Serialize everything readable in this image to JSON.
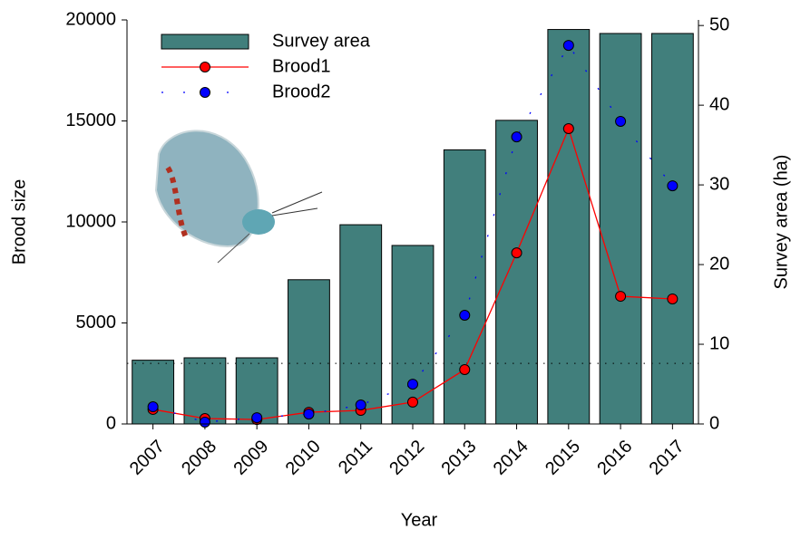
{
  "chart_data": {
    "type": "bar-line",
    "x_label": "Year",
    "y_label": "Brood size",
    "y2_label": "Survey area (ha)",
    "categories": [
      "2007",
      "2008",
      "2009",
      "2010",
      "2011",
      "2012",
      "2013",
      "2014",
      "2015",
      "2016",
      "2017"
    ],
    "series": [
      {
        "name": "Survey area",
        "type": "bar",
        "axis": "y2",
        "color": "#417f7c",
        "values": [
          8.0,
          8.3,
          8.3,
          18.1,
          25.0,
          22.4,
          34.4,
          38.1,
          49.5,
          49.0,
          49.0
        ]
      },
      {
        "name": "Brood1",
        "type": "line",
        "axis": "y",
        "color": "#ff0000",
        "values": [
          720,
          270,
          220,
          580,
          670,
          1080,
          2690,
          8470,
          14620,
          6320,
          6190
        ]
      },
      {
        "name": "Brood2",
        "type": "dotted",
        "axis": "y",
        "color": "#0000ff",
        "values": [
          850,
          90,
          310,
          490,
          940,
          1970,
          5380,
          14210,
          18740,
          14980,
          11790
        ]
      }
    ],
    "reference_line": 3000,
    "ylim": [
      0,
      20000
    ],
    "yticks": [
      0,
      5000,
      10000,
      15000,
      20000
    ],
    "y2lim": [
      0,
      50.7
    ],
    "y2ticks": [
      0,
      10,
      20,
      30,
      40,
      50
    ],
    "legend": "upper-left"
  }
}
